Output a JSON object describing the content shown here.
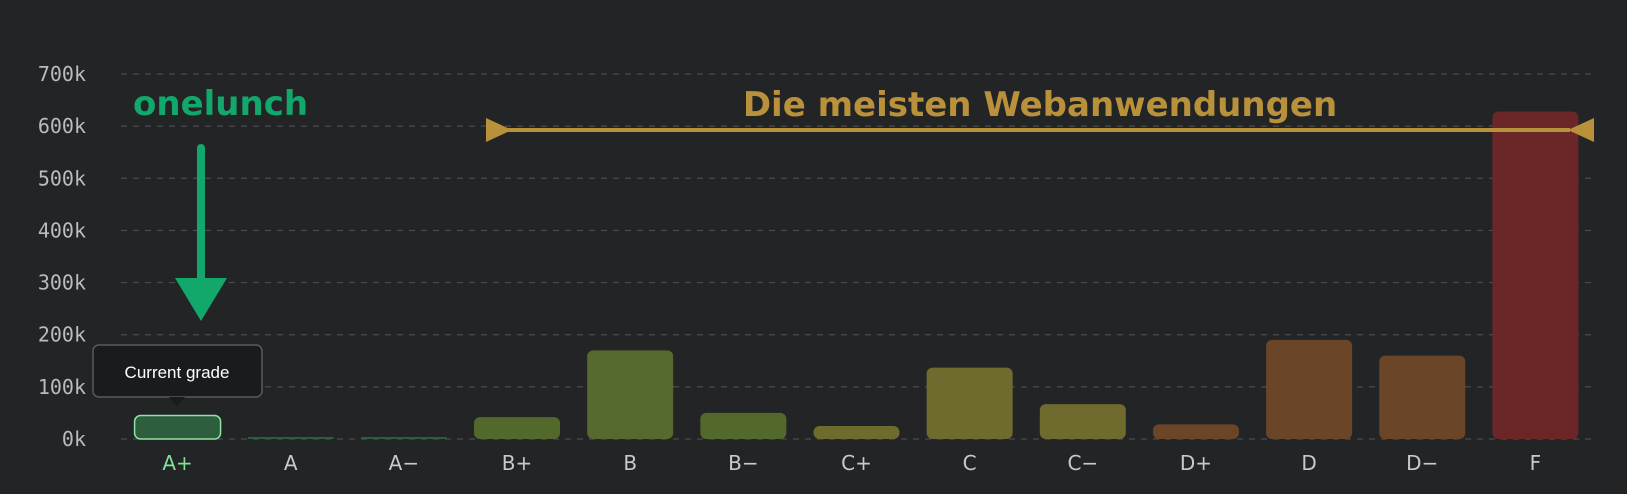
{
  "chart_data": {
    "type": "bar",
    "categories": [
      "A+",
      "A",
      "A−",
      "B+",
      "B",
      "B−",
      "C+",
      "C",
      "C−",
      "D+",
      "D",
      "D−",
      "F"
    ],
    "values": [
      45000,
      2000,
      3000,
      42000,
      170000,
      50000,
      25000,
      137000,
      67000,
      28000,
      190000,
      160000,
      628000
    ],
    "bar_colors": [
      "#2f5e3f",
      "#2f5e3f",
      "#2f5e3f",
      "#53692c",
      "#56692e",
      "#53692c",
      "#6f6a2e",
      "#6f6a2e",
      "#6f6a2e",
      "#6b4527",
      "#6b4527",
      "#6b4527",
      "#6b2627"
    ],
    "highlight_index": 0,
    "highlight_color": "#8fe3a3",
    "yticks": [
      "0k",
      "100k",
      "200k",
      "300k",
      "400k",
      "500k",
      "600k",
      "700k"
    ],
    "ylim": [
      0,
      700000
    ],
    "grid": true,
    "xlabel": "",
    "ylabel": "",
    "title": ""
  },
  "tooltip": {
    "text": "Current grade"
  },
  "annotations": {
    "brand_label": "onelunch",
    "range_label": "Die meisten Webanwendungen",
    "green_color": "#12a86b",
    "gold_color": "#b9913a"
  }
}
